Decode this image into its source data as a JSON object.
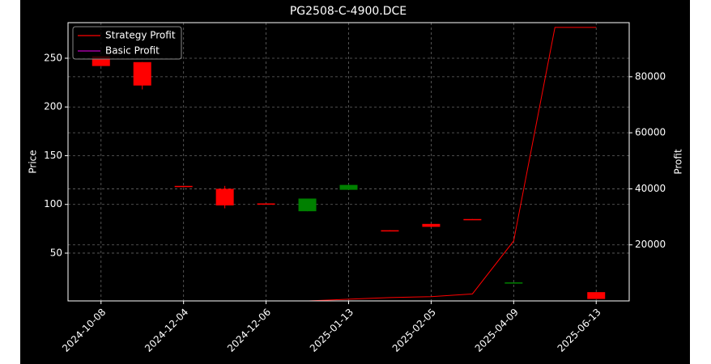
{
  "chart_data": {
    "type": "candlestick",
    "title": "PG2508-C-4900.DCE",
    "ylabel": "Price",
    "y2label": "Profit",
    "categories": [
      "2024-10-08",
      null,
      "2024-12-04",
      null,
      "2024-12-06",
      null,
      "2025-01-13",
      null,
      "2025-02-05",
      null,
      "2025-04-09",
      null,
      "2025-06-13"
    ],
    "candles": {
      "open": [
        252,
        246,
        119,
        116,
        101,
        93,
        115,
        73.5,
        80,
        85,
        19.5,
        null,
        10
      ],
      "high": [
        252,
        246,
        119,
        119,
        101,
        106,
        120.5,
        73.5,
        80.5,
        85,
        20,
        null,
        10
      ],
      "low": [
        242,
        218,
        118,
        96,
        100,
        93,
        115,
        73,
        76.5,
        84.5,
        19.5,
        null,
        3
      ],
      "close": [
        242,
        222,
        118,
        99,
        100,
        106,
        120,
        73,
        77,
        84.5,
        20,
        null,
        3
      ],
      "up_color": "#008000",
      "down_color": "#ff0000"
    },
    "series": [
      {
        "name": "Strategy Profit",
        "color": "#ff0000",
        "axis": "y2",
        "values": [
          0,
          0,
          0,
          0,
          0,
          0,
          600,
          1200,
          1500,
          2500,
          21400,
          97600,
          97600
        ]
      },
      {
        "name": "Basic Profit",
        "color": "#bf00bf",
        "axis": "y2",
        "values": [
          0,
          0,
          0,
          0,
          0,
          0,
          0,
          0,
          0,
          0,
          0,
          0,
          0
        ]
      }
    ],
    "ylim": [
      1,
      286.5
    ],
    "yticks": [
      50,
      100,
      150,
      200,
      250
    ],
    "y2lim": [
      0,
      99300
    ],
    "y2ticks": [
      20000,
      40000,
      60000,
      80000
    ],
    "grid": true,
    "legend": "upper left"
  }
}
